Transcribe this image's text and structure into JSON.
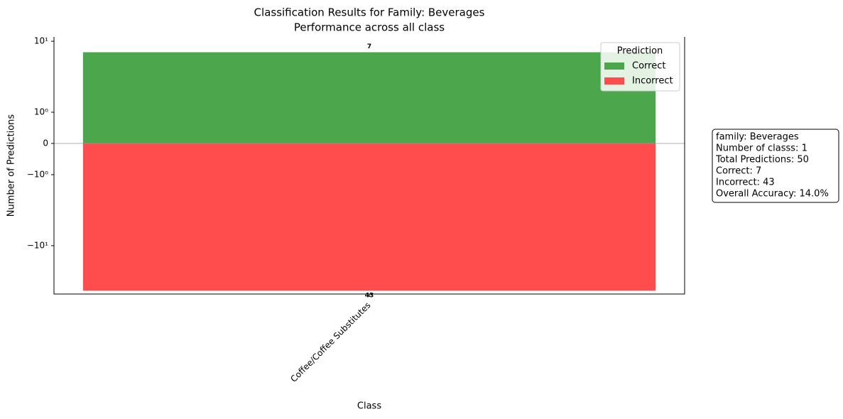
{
  "chart_data": {
    "type": "bar",
    "title": "Classification Results for Family: Beverages",
    "subtitle": "Performance across all class",
    "x_label": "Class",
    "y_label": "Number of Predictions",
    "categories": [
      "Coffee/Coffee Substitutes"
    ],
    "series": [
      {
        "name": "Correct",
        "color": "#4ca64c",
        "values": [
          7
        ],
        "value_labels": [
          "7"
        ]
      },
      {
        "name": "Incorrect",
        "color": "#ff4c4c",
        "values": [
          -43
        ],
        "value_labels": [
          "43"
        ]
      }
    ],
    "yscale": "symlog",
    "ylim": [
      -48,
      11.5
    ],
    "yticks": [
      {
        "value": 10,
        "label": "10¹"
      },
      {
        "value": 1,
        "label": "10⁰"
      },
      0,
      {
        "value": -1,
        "label": "−10⁰"
      },
      {
        "value": -10,
        "label": "−10¹"
      }
    ],
    "legend": {
      "title": "Prediction",
      "position": "upper right"
    },
    "info_box": [
      "family: Beverages",
      "Number of classs: 1",
      "Total Predictions: 50",
      "Correct: 7",
      "Incorrect: 43",
      "Overall Accuracy: 14.0%"
    ]
  }
}
